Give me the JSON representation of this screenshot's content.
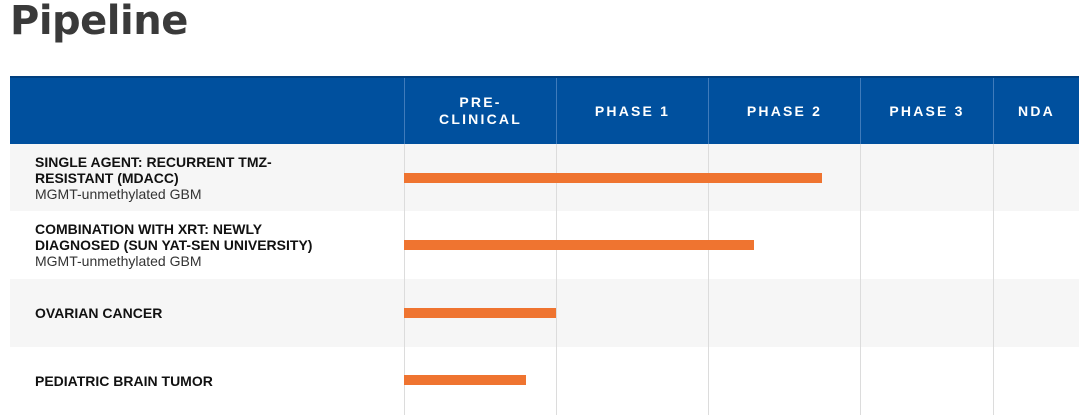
{
  "page": {
    "title": "Pipeline"
  },
  "table": {
    "header": {
      "indication": "",
      "phases": [
        "PRE-\nCLINICAL",
        "PHASE 1",
        "PHASE 2",
        "PHASE 3",
        "NDA"
      ]
    },
    "rows": [
      {
        "name": "SINGLE AGENT: RECURRENT TMZ-\nRESISTANT (MDACC)",
        "subtitle": "MGMT-unmethylated GBM",
        "progress_phases": 2.75
      },
      {
        "name": "COMBINATION WITH XRT: NEWLY\nDIAGNOSED (SUN YAT-SEN UNIVERSITY)",
        "subtitle": "MGMT-unmethylated GBM",
        "progress_phases": 2.3
      },
      {
        "name": "OVARIAN CANCER",
        "subtitle": "",
        "progress_phases": 1.0
      },
      {
        "name": "PEDIATRIC BRAIN TUMOR",
        "subtitle": "",
        "progress_phases": 0.8
      }
    ],
    "colors": {
      "header_bg": "#00509e",
      "bar": "#ef7430",
      "row_shade": "#f6f6f6",
      "title": "#3a3a3a"
    }
  }
}
